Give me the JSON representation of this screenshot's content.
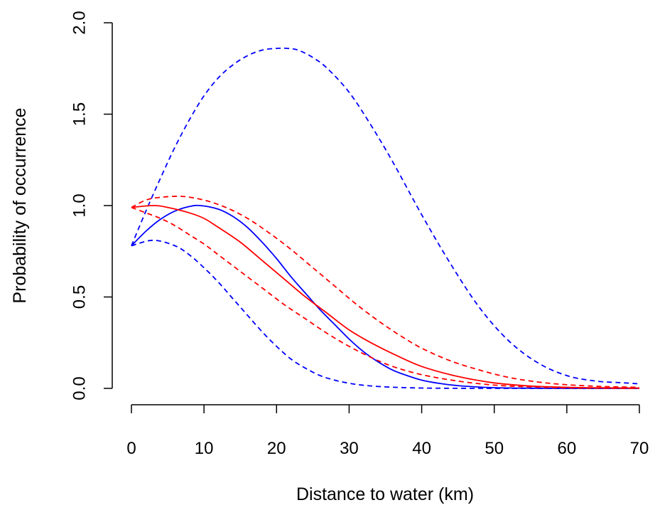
{
  "chart_data": {
    "type": "line",
    "xlabel": "Distance to water (km)",
    "ylabel": "Probability of occurrence",
    "xlim": [
      0,
      70
    ],
    "ylim": [
      0,
      2
    ],
    "x_ticks": [
      0,
      10,
      20,
      30,
      40,
      50,
      60,
      70
    ],
    "x_tick_labels": [
      "0",
      "10",
      "20",
      "30",
      "40",
      "50",
      "60",
      "70"
    ],
    "y_ticks": [
      0,
      0.5,
      1,
      1.5,
      2
    ],
    "y_tick_labels": [
      "0.0",
      "0.5",
      "1.0",
      "1.5",
      "2.0"
    ],
    "grid": false,
    "colors": {
      "blue": "#0000ff",
      "red": "#ff0000"
    },
    "series": [
      {
        "color": "blue",
        "style": "solid",
        "x": [
          0,
          2,
          4,
          6,
          8,
          9.5,
          12,
          14,
          16,
          18,
          20,
          22,
          24,
          26,
          28,
          30,
          32,
          34,
          36,
          38,
          40,
          42,
          45,
          50,
          55,
          60,
          65,
          70
        ],
        "y": [
          0.78,
          0.86,
          0.925,
          0.97,
          0.995,
          1.0,
          0.98,
          0.94,
          0.88,
          0.8,
          0.71,
          0.61,
          0.52,
          0.43,
          0.35,
          0.27,
          0.2,
          0.145,
          0.1,
          0.07,
          0.045,
          0.03,
          0.015,
          0.004,
          0.001,
          0,
          0,
          0
        ]
      },
      {
        "color": "blue",
        "style": "dashed",
        "x": [
          0,
          3,
          6,
          8,
          10,
          12,
          14,
          16,
          18,
          20,
          22,
          24,
          26,
          28,
          30,
          32,
          35,
          40,
          45,
          50,
          55,
          60,
          65,
          70
        ],
        "y": [
          0.78,
          0.81,
          0.78,
          0.73,
          0.66,
          0.58,
          0.49,
          0.4,
          0.31,
          0.23,
          0.16,
          0.11,
          0.07,
          0.045,
          0.028,
          0.017,
          0.008,
          0.002,
          0.0005,
          0,
          0,
          0,
          0,
          0
        ]
      },
      {
        "color": "blue",
        "style": "dashed",
        "x": [
          0,
          2,
          4,
          6,
          8,
          10,
          12,
          14,
          16,
          18,
          20,
          21.5,
          23,
          25,
          27,
          30,
          33,
          36,
          40,
          44,
          48,
          52,
          56,
          60,
          64,
          68,
          70
        ],
        "y": [
          0.78,
          0.97,
          1.15,
          1.32,
          1.47,
          1.6,
          1.7,
          1.77,
          1.82,
          1.85,
          1.86,
          1.86,
          1.85,
          1.81,
          1.75,
          1.62,
          1.44,
          1.24,
          0.95,
          0.68,
          0.44,
          0.26,
          0.14,
          0.07,
          0.04,
          0.03,
          0.025
        ]
      },
      {
        "color": "red",
        "style": "solid",
        "x": [
          0,
          3,
          5,
          8,
          10,
          12,
          15,
          18,
          21,
          24,
          27,
          30,
          33,
          36,
          40,
          45,
          50,
          55,
          60,
          65,
          70
        ],
        "y": [
          0.99,
          1.0,
          0.99,
          0.96,
          0.93,
          0.88,
          0.8,
          0.7,
          0.6,
          0.5,
          0.41,
          0.32,
          0.25,
          0.19,
          0.12,
          0.065,
          0.03,
          0.013,
          0.006,
          0.003,
          0.002
        ]
      },
      {
        "color": "red",
        "style": "dashed",
        "x": [
          0,
          2,
          4,
          6,
          8,
          10,
          12,
          15,
          18,
          21,
          24,
          27,
          30,
          33,
          36,
          40,
          45,
          50,
          55,
          60,
          65,
          70
        ],
        "y": [
          0.99,
          0.96,
          0.93,
          0.89,
          0.84,
          0.79,
          0.73,
          0.64,
          0.55,
          0.46,
          0.38,
          0.3,
          0.23,
          0.17,
          0.12,
          0.075,
          0.04,
          0.018,
          0.008,
          0.003,
          0.001,
          0
        ]
      },
      {
        "color": "red",
        "style": "dashed",
        "x": [
          0,
          2,
          4,
          7,
          10,
          13,
          16,
          19,
          22,
          25,
          28,
          31,
          34,
          37,
          40,
          44,
          48,
          52,
          56,
          60,
          65,
          70
        ],
        "y": [
          0.99,
          1.03,
          1.045,
          1.05,
          1.03,
          0.99,
          0.93,
          0.85,
          0.76,
          0.66,
          0.56,
          0.46,
          0.37,
          0.29,
          0.22,
          0.15,
          0.1,
          0.06,
          0.035,
          0.02,
          0.01,
          0.006
        ]
      }
    ]
  }
}
